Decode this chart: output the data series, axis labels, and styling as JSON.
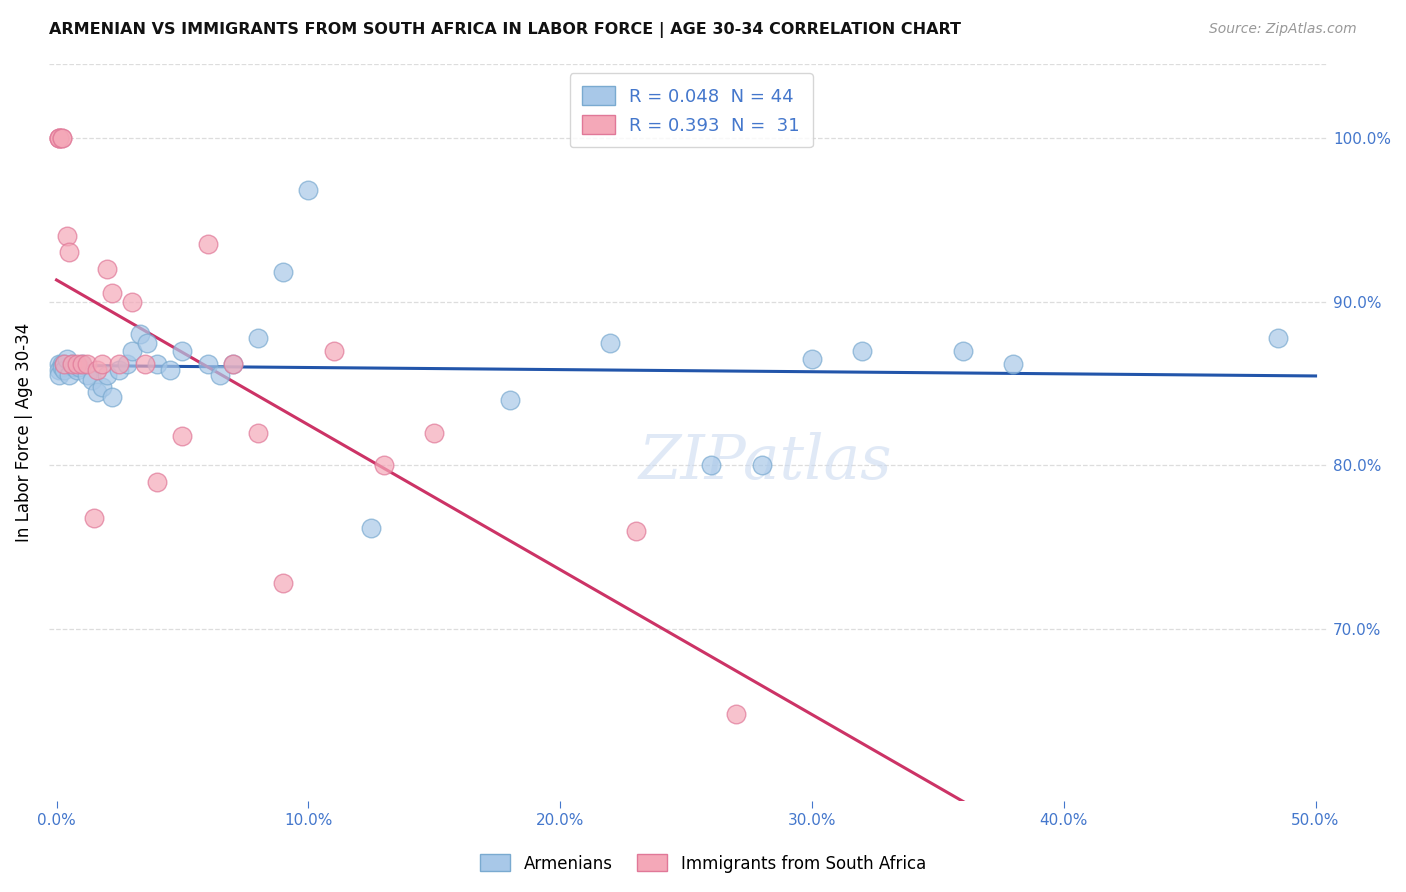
{
  "title": "ARMENIAN VS IMMIGRANTS FROM SOUTH AFRICA IN LABOR FORCE | AGE 30-34 CORRELATION CHART",
  "source": "Source: ZipAtlas.com",
  "ylabel": "In Labor Force | Age 30-34",
  "xlim": [
    -0.003,
    0.505
  ],
  "ylim": [
    0.595,
    1.045
  ],
  "yticks": [
    0.7,
    0.8,
    0.9,
    1.0
  ],
  "ytick_labels": [
    "70.0%",
    "80.0%",
    "90.0%",
    "100.0%"
  ],
  "xticks": [
    0.0,
    0.1,
    0.2,
    0.3,
    0.4,
    0.5
  ],
  "xtick_labels": [
    "0.0%",
    "10.0%",
    "20.0%",
    "30.0%",
    "40.0%",
    "50.0%"
  ],
  "blue_color": "#a8c8e8",
  "pink_color": "#f4a8b8",
  "blue_line_color": "#2255aa",
  "pink_line_color": "#cc3366",
  "blue_edge_color": "#7aaad0",
  "pink_edge_color": "#e07898",
  "armenian_x": [
    0.001,
    0.001,
    0.001,
    0.002,
    0.002,
    0.003,
    0.003,
    0.004,
    0.005,
    0.006,
    0.007,
    0.008,
    0.009,
    0.01,
    0.012,
    0.014,
    0.016,
    0.018,
    0.02,
    0.022,
    0.025,
    0.028,
    0.03,
    0.033,
    0.036,
    0.04,
    0.045,
    0.05,
    0.06,
    0.065,
    0.07,
    0.08,
    0.09,
    0.1,
    0.125,
    0.18,
    0.22,
    0.26,
    0.28,
    0.3,
    0.32,
    0.36,
    0.38,
    0.485
  ],
  "armenian_y": [
    0.862,
    0.858,
    0.855,
    0.862,
    0.86,
    0.862,
    0.858,
    0.865,
    0.855,
    0.862,
    0.86,
    0.858,
    0.86,
    0.862,
    0.855,
    0.852,
    0.845,
    0.848,
    0.855,
    0.842,
    0.858,
    0.862,
    0.87,
    0.88,
    0.875,
    0.862,
    0.858,
    0.87,
    0.862,
    0.855,
    0.862,
    0.878,
    0.918,
    0.968,
    0.762,
    0.84,
    0.875,
    0.8,
    0.8,
    0.865,
    0.87,
    0.87,
    0.862,
    0.878
  ],
  "sa_x": [
    0.001,
    0.001,
    0.001,
    0.002,
    0.002,
    0.003,
    0.004,
    0.005,
    0.006,
    0.008,
    0.01,
    0.012,
    0.015,
    0.016,
    0.018,
    0.02,
    0.022,
    0.025,
    0.03,
    0.035,
    0.04,
    0.05,
    0.06,
    0.07,
    0.08,
    0.09,
    0.11,
    0.13,
    0.15,
    0.23,
    0.27
  ],
  "sa_y": [
    1.0,
    1.0,
    1.0,
    1.0,
    1.0,
    0.862,
    0.94,
    0.93,
    0.862,
    0.862,
    0.862,
    0.862,
    0.768,
    0.858,
    0.862,
    0.92,
    0.905,
    0.862,
    0.9,
    0.862,
    0.79,
    0.818,
    0.935,
    0.862,
    0.82,
    0.728,
    0.87,
    0.8,
    0.82,
    0.76,
    0.648
  ],
  "watermark": "ZIPatlas",
  "background_color": "#ffffff",
  "tick_color": "#4477cc",
  "grid_color": "#dddddd",
  "legend_label_blue": "R = 0.048  N = 44",
  "legend_label_pink": "R = 0.393  N =  31",
  "bottom_label_blue": "Armenians",
  "bottom_label_pink": "Immigrants from South Africa"
}
